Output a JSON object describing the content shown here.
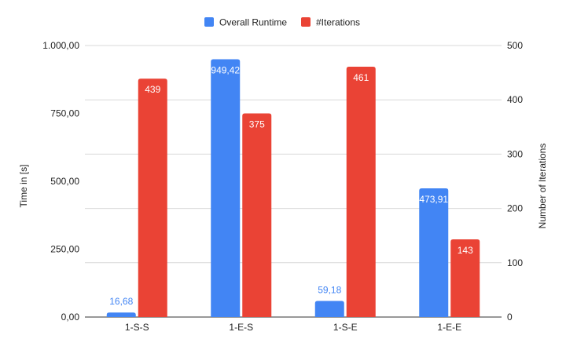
{
  "chart_data": {
    "type": "bar",
    "title": "",
    "categories": [
      "1-S-S",
      "1-E-S",
      "1-S-E",
      "1-E-E"
    ],
    "series": [
      {
        "name": "Overall Runtime",
        "axis": "left",
        "color": "#4285f4",
        "values": [
          16.68,
          949.42,
          59.18,
          473.91
        ],
        "labels": [
          "16,68",
          "949,42",
          "59,18",
          "473,91"
        ]
      },
      {
        "name": "#Iterations",
        "axis": "right",
        "color": "#ea4335",
        "values": [
          439,
          375,
          461,
          143
        ],
        "labels": [
          "439",
          "375",
          "461",
          "143"
        ]
      }
    ],
    "ylabel": "Time in [s]",
    "ylim": [
      0,
      1000
    ],
    "yticks": [
      "0,00",
      "250,00",
      "500,00",
      "750,00",
      "1.000,00"
    ],
    "y2label": "Number of Iterations",
    "y2lim": [
      0,
      500
    ],
    "y2ticks": [
      "0",
      "100",
      "200",
      "300",
      "400",
      "500"
    ],
    "legend_position": "top",
    "grid": true
  }
}
